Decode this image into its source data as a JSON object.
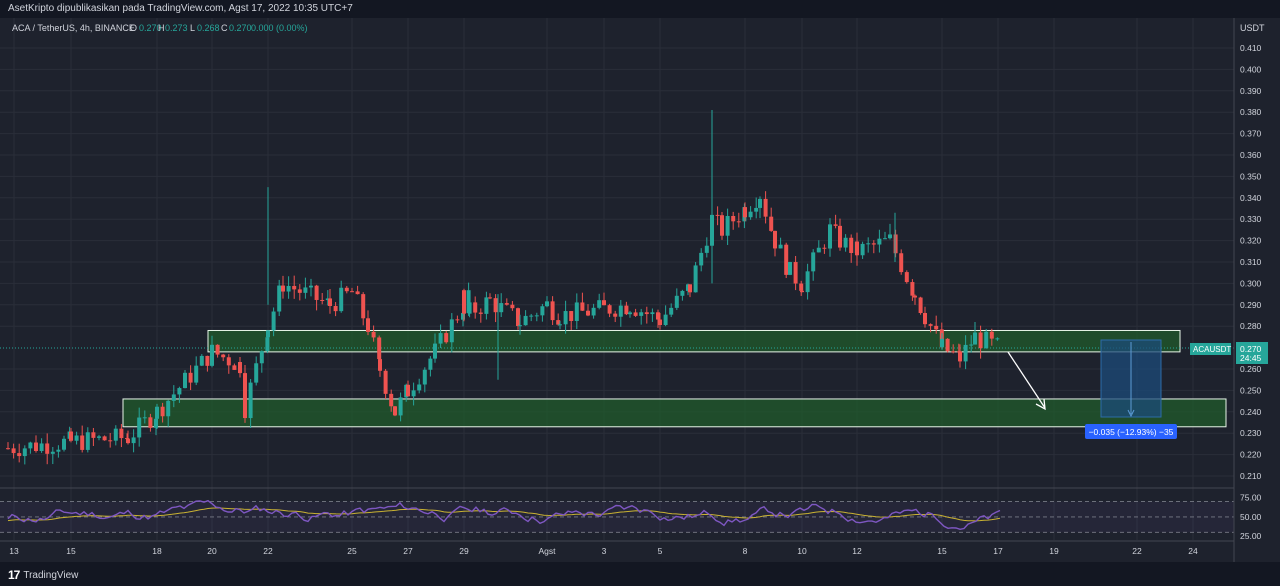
{
  "publish_header": "AsetKripto dipublikasikan pada TradingView.com, Agst 17, 2022 10:35 UTC+7",
  "legend": {
    "symbol": "ACA / TetherUS, 4h, BINANCE",
    "o_label": "O",
    "o_value": "0.270",
    "h_label": "H",
    "h_value": "0.273",
    "l_label": "L",
    "l_value": "0.268",
    "c_label": "C",
    "c_value": "0.270",
    "change": "0.000 (0.00%)"
  },
  "price_axis": {
    "currency": "USDT",
    "ticks": [
      "0.410",
      "0.400",
      "0.390",
      "0.380",
      "0.370",
      "0.360",
      "0.350",
      "0.340",
      "0.330",
      "0.320",
      "0.310",
      "0.300",
      "0.290",
      "0.280",
      "0.260",
      "0.250",
      "0.240",
      "0.230",
      "0.220",
      "0.210"
    ]
  },
  "last_price": {
    "ticker": "ACAUSDT",
    "price": "0.270",
    "countdown": "24:45"
  },
  "rsi_axis": {
    "ticks": [
      "75.00",
      "50.00",
      "25.00"
    ]
  },
  "time_axis": {
    "labels": [
      "13",
      "15",
      "18",
      "20",
      "22",
      "25",
      "27",
      "29",
      "Agst",
      "3",
      "5",
      "8",
      "10",
      "12",
      "15",
      "17",
      "19",
      "22",
      "24"
    ]
  },
  "measure_label": "−0.035 (−12.93%) −35",
  "footer": {
    "brand": "TradingView"
  },
  "colors": {
    "background": "#1e222d",
    "up": "#26a69a",
    "down": "#ef5350",
    "zone_fill": "#1f5e2b",
    "zone_border": "#e8f5e9",
    "rsi": "#7e57c2",
    "rsi_ma": "#c9b232",
    "label_blue": "#2962ff",
    "measure_fill": "#1c4b7a"
  },
  "chart_data": {
    "type": "candlestick",
    "symbol": "ACA / TetherUS",
    "interval": "4h",
    "exchange": "BINANCE",
    "ylim": [
      0.21,
      0.415
    ],
    "x_ticks": [
      "13",
      "15",
      "18",
      "20",
      "22",
      "25",
      "27",
      "29",
      "Agst",
      "3",
      "5",
      "8",
      "10",
      "12",
      "15",
      "17",
      "19",
      "22",
      "24"
    ],
    "price_path": [
      [
        "13",
        0.223
      ],
      [
        "15",
        0.226
      ],
      [
        "17",
        0.228
      ],
      [
        "18",
        0.24
      ],
      [
        "20",
        0.268
      ],
      [
        "21",
        0.262
      ],
      [
        "21.5",
        0.242
      ],
      [
        "22",
        0.28
      ],
      [
        "22.5",
        0.3
      ],
      [
        "24",
        0.29
      ],
      [
        "25",
        0.296
      ],
      [
        "25.5",
        0.28
      ],
      [
        "26",
        0.26
      ],
      [
        "26.5",
        0.24
      ],
      [
        "27",
        0.25
      ],
      [
        "28",
        0.268
      ],
      [
        "28.5",
        0.295
      ],
      [
        "29",
        0.285
      ],
      [
        "30",
        0.292
      ],
      [
        "31",
        0.282
      ],
      [
        "Agst",
        0.29
      ],
      [
        "2",
        0.285
      ],
      [
        "3",
        0.288
      ],
      [
        "4",
        0.29
      ],
      [
        "5",
        0.283
      ],
      [
        "6",
        0.298
      ],
      [
        "7",
        0.33
      ],
      [
        "7.5",
        0.325
      ],
      [
        "8",
        0.335
      ],
      [
        "8.5",
        0.342
      ],
      [
        "9",
        0.32
      ],
      [
        "9.5",
        0.305
      ],
      [
        "10",
        0.3
      ],
      [
        "10.5",
        0.325
      ],
      [
        "11",
        0.32
      ],
      [
        "12",
        0.315
      ],
      [
        "13",
        0.32
      ],
      [
        "14",
        0.295
      ],
      [
        "14.5",
        0.285
      ],
      [
        "15",
        0.27
      ],
      [
        "16",
        0.265
      ],
      [
        "16.5",
        0.275
      ],
      [
        "17",
        0.27
      ]
    ],
    "support_zones": [
      {
        "from": 0.268,
        "to": 0.278
      },
      {
        "from": 0.233,
        "to": 0.246
      }
    ],
    "projection": {
      "change": -0.035,
      "percent": -12.93,
      "bars": -35
    },
    "rsi": {
      "ylim": [
        25,
        75
      ],
      "levels": [
        70,
        50,
        30
      ]
    }
  }
}
